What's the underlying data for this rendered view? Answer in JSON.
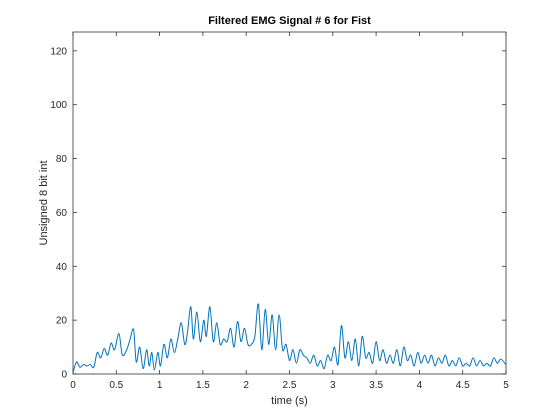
{
  "chart_data": {
    "type": "line",
    "title": "Filtered EMG Signal # 6 for Fist",
    "xlabel": "time (s)",
    "ylabel": "Unsigned 8 bit int",
    "xlim": [
      0,
      5
    ],
    "ylim": [
      0,
      127
    ],
    "grid": false,
    "x_ticks": [
      0,
      0.5,
      1,
      1.5,
      2,
      2.5,
      3,
      3.5,
      4,
      4.5,
      5
    ],
    "x_tick_labels": [
      "0",
      "0.5",
      "1",
      "1.5",
      "2",
      "2.5",
      "3",
      "3.5",
      "4",
      "4.5",
      "5"
    ],
    "y_ticks": [
      0,
      20,
      40,
      60,
      80,
      100,
      120
    ],
    "y_tick_labels": [
      "0",
      "20",
      "40",
      "60",
      "80",
      "100",
      "120"
    ],
    "line_color": "#0072bd",
    "series": [
      {
        "x": [
          0,
          0.04,
          0.08,
          0.12,
          0.16,
          0.2,
          0.24,
          0.28,
          0.32,
          0.36,
          0.4,
          0.44,
          0.48,
          0.53,
          0.57,
          0.62,
          0.66,
          0.7,
          0.73,
          0.77,
          0.81,
          0.85,
          0.88,
          0.91,
          0.94,
          0.98,
          1.01,
          1.05,
          1.09,
          1.13,
          1.17,
          1.21,
          1.25,
          1.29,
          1.32,
          1.36,
          1.39,
          1.43,
          1.47,
          1.51,
          1.54,
          1.58,
          1.62,
          1.66,
          1.7,
          1.74,
          1.78,
          1.82,
          1.86,
          1.9,
          1.94,
          1.98,
          2.02,
          2.06,
          2.1,
          2.14,
          2.18,
          2.22,
          2.26,
          2.3,
          2.34,
          2.38,
          2.42,
          2.46,
          2.5,
          2.54,
          2.58,
          2.62,
          2.66,
          2.7,
          2.74,
          2.78,
          2.82,
          2.86,
          2.9,
          2.94,
          2.98,
          3.02,
          3.06,
          3.1,
          3.14,
          3.18,
          3.22,
          3.26,
          3.3,
          3.34,
          3.38,
          3.42,
          3.46,
          3.5,
          3.54,
          3.58,
          3.62,
          3.66,
          3.7,
          3.74,
          3.78,
          3.82,
          3.86,
          3.9,
          3.94,
          3.98,
          4.02,
          4.06,
          4.1,
          4.14,
          4.18,
          4.22,
          4.26,
          4.3,
          4.34,
          4.38,
          4.42,
          4.46,
          4.5,
          4.54,
          4.58,
          4.62,
          4.66,
          4.7,
          4.74,
          4.78,
          4.82,
          4.86,
          4.9,
          4.94,
          5
        ],
        "y": [
          0.5,
          4.5,
          2.5,
          3.5,
          3,
          3.5,
          2.5,
          8,
          6,
          9.5,
          7,
          11.5,
          9,
          15,
          7,
          9,
          13,
          16.5,
          4.5,
          10,
          2,
          9,
          3,
          8,
          1.5,
          8,
          3,
          11,
          6,
          13,
          8,
          13,
          19,
          11,
          15,
          25,
          13,
          23,
          12,
          20,
          14,
          25,
          12,
          19,
          11,
          13,
          12,
          17,
          10,
          19.5,
          12,
          17,
          11,
          11,
          14,
          26,
          9,
          24,
          11,
          22,
          9,
          22,
          9,
          11,
          5,
          9,
          4,
          9,
          7,
          6,
          4,
          7,
          3,
          5,
          2,
          7,
          5,
          10,
          3.5,
          18,
          6,
          12,
          5,
          13,
          3,
          14,
          6,
          8,
          4,
          12,
          5,
          9,
          4,
          7,
          4,
          9,
          3,
          10,
          5,
          7,
          3,
          8,
          4,
          7,
          4,
          7,
          3,
          6,
          4,
          7,
          3,
          5,
          3,
          6,
          3,
          4,
          3,
          6,
          3,
          5,
          3,
          4,
          3,
          6,
          4,
          5.5,
          3.5
        ]
      }
    ]
  }
}
